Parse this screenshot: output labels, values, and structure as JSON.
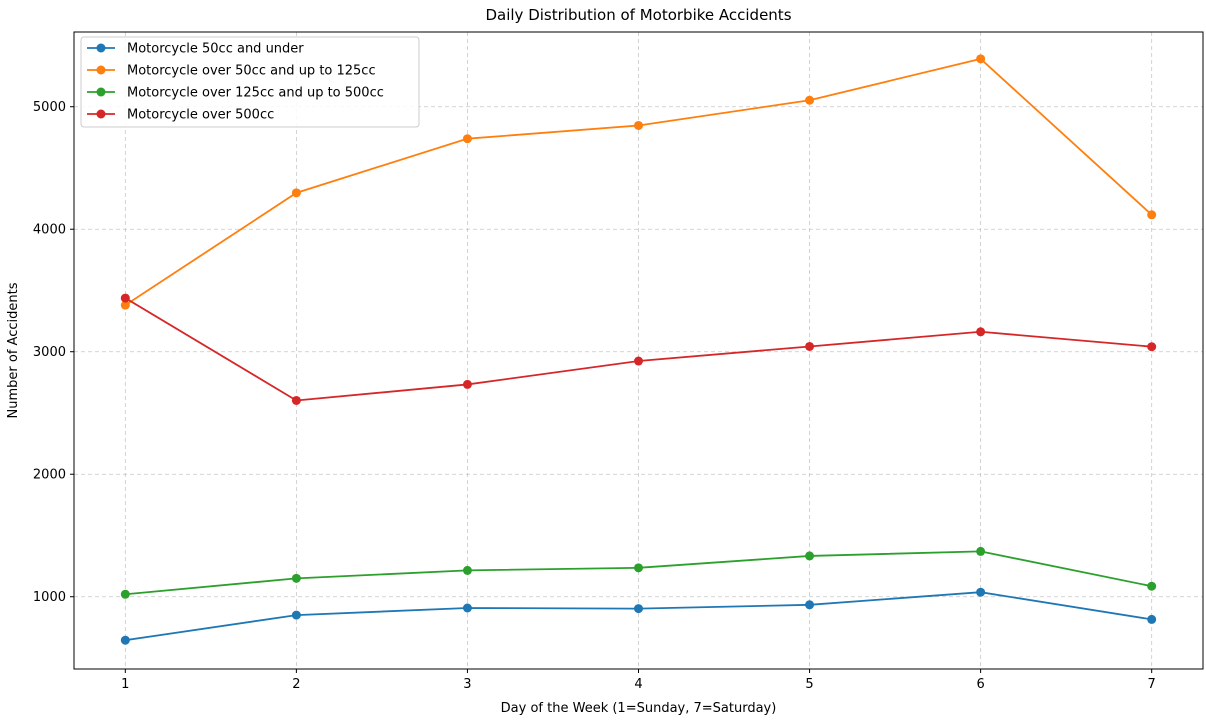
{
  "chart_data": {
    "type": "line",
    "title": "Daily Distribution of Motorbike Accidents",
    "xlabel": "Day of the Week (1=Sunday, 7=Saturday)",
    "ylabel": "Number of Accidents",
    "x": [
      1,
      2,
      3,
      4,
      5,
      6,
      7
    ],
    "xlim": [
      0.7,
      7.3
    ],
    "ylim": [
      410,
      5610
    ],
    "xticks": [
      1,
      2,
      3,
      4,
      5,
      6,
      7
    ],
    "yticks": [
      1000,
      2000,
      3000,
      4000,
      5000
    ],
    "grid": true,
    "grid_style": "dashed",
    "legend_position": "upper-left",
    "series": [
      {
        "name": "Motorcycle 50cc and under",
        "color": "#1f77b4",
        "values": [
          645,
          850,
          908,
          903,
          934,
          1037,
          815
        ]
      },
      {
        "name": "Motorcycle over 50cc and up to 125cc",
        "color": "#ff7f0e",
        "values": [
          3380,
          4297,
          4739,
          4847,
          5053,
          5391,
          4118
        ]
      },
      {
        "name": "Motorcycle over 125cc and up to 500cc",
        "color": "#2ca02c",
        "values": [
          1020,
          1150,
          1215,
          1236,
          1333,
          1370,
          1086
        ]
      },
      {
        "name": "Motorcycle over 500cc",
        "color": "#d62728",
        "values": [
          3438,
          2602,
          2733,
          2924,
          3043,
          3163,
          3041
        ]
      }
    ]
  }
}
